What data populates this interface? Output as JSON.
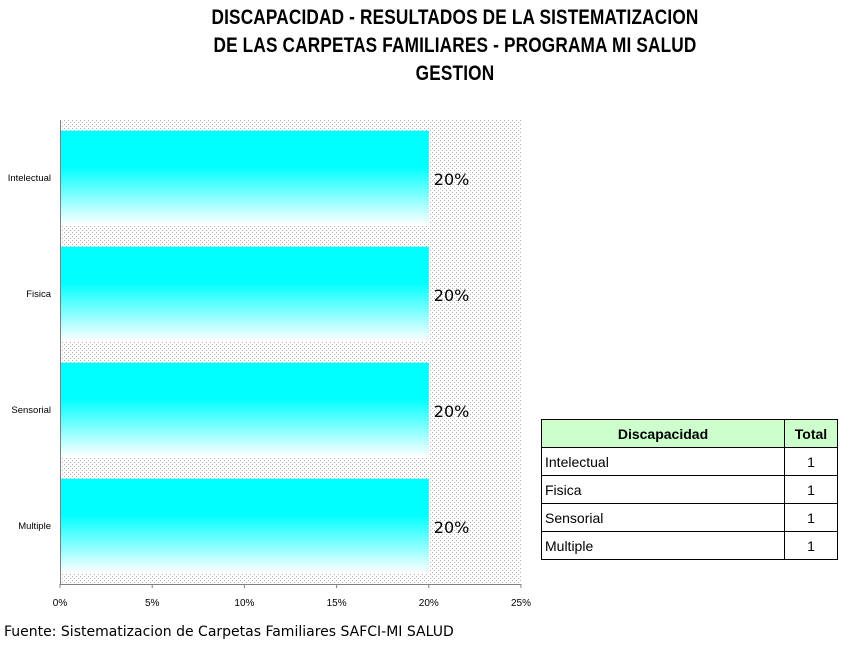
{
  "title_lines": [
    "DISCAPACIDAD - RESULTADOS DE LA SISTEMATIZACION",
    "DE LAS CARPETAS FAMILIARES - PROGRAMA MI SALUD",
    "GESTION"
  ],
  "source": "Fuente: Sistematizacion de Carpetas Familiares SAFCI-MI SALUD",
  "colors": {
    "bar_top": "#00ffff",
    "bar_bottom": "#ffffff",
    "header_bg": "#ccffcc"
  },
  "chart_data": {
    "type": "bar",
    "orientation": "horizontal",
    "categories": [
      "Intelectual",
      "Fisica",
      "Sensorial",
      "Multiple"
    ],
    "values": [
      0.2,
      0.2,
      0.2,
      0.2
    ],
    "data_labels": [
      "20%",
      "20%",
      "20%",
      "20%"
    ],
    "xlim": [
      0,
      0.25
    ],
    "xticks": [
      0,
      0.05,
      0.1,
      0.15,
      0.2,
      0.25
    ],
    "xtick_labels": [
      "0%",
      "5%",
      "10%",
      "15%",
      "20%",
      "25%"
    ],
    "grid": false,
    "plot_background": "dotted"
  },
  "table": {
    "headers": [
      "Discapacidad",
      "Total"
    ],
    "rows": [
      [
        "Intelectual",
        "1"
      ],
      [
        "Fisica",
        "1"
      ],
      [
        "Sensorial",
        "1"
      ],
      [
        "Multiple",
        "1"
      ]
    ]
  }
}
